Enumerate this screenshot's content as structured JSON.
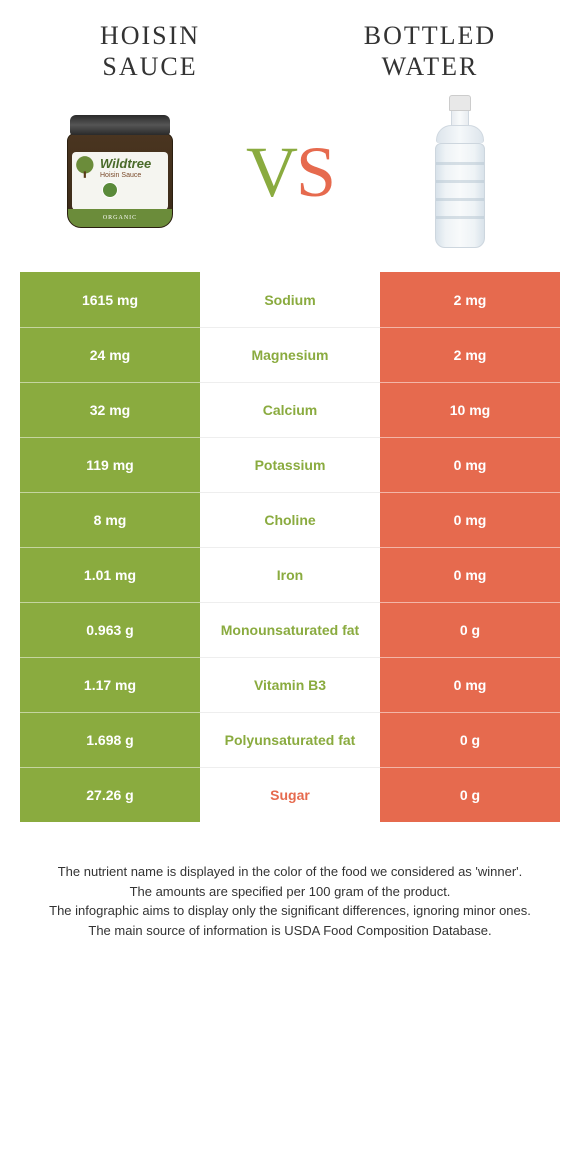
{
  "left_product": {
    "title_line1": "HOISIN",
    "title_line2": "SAUCE"
  },
  "right_product": {
    "title_line1": "BOTTLED",
    "title_line2": "WATER"
  },
  "vs": {
    "v": "V",
    "s": "S"
  },
  "jar": {
    "brand": "Wildtree",
    "product": "Hoisin Sauce",
    "footer": "ORGANIC"
  },
  "colors": {
    "green": "#8aab3f",
    "orange": "#e66a4e",
    "green_text": "#8aab3f",
    "orange_text": "#e66a4e"
  },
  "rows": [
    {
      "left": "1615 mg",
      "label": "Sodium",
      "right": "2 mg",
      "winner": "left"
    },
    {
      "left": "24 mg",
      "label": "Magnesium",
      "right": "2 mg",
      "winner": "left"
    },
    {
      "left": "32 mg",
      "label": "Calcium",
      "right": "10 mg",
      "winner": "left"
    },
    {
      "left": "119 mg",
      "label": "Potassium",
      "right": "0 mg",
      "winner": "left"
    },
    {
      "left": "8 mg",
      "label": "Choline",
      "right": "0 mg",
      "winner": "left"
    },
    {
      "left": "1.01 mg",
      "label": "Iron",
      "right": "0 mg",
      "winner": "left"
    },
    {
      "left": "0.963 g",
      "label": "Monounsaturated fat",
      "right": "0 g",
      "winner": "left"
    },
    {
      "left": "1.17 mg",
      "label": "Vitamin B3",
      "right": "0 mg",
      "winner": "left"
    },
    {
      "left": "1.698 g",
      "label": "Polyunsaturated fat",
      "right": "0 g",
      "winner": "left"
    },
    {
      "left": "27.26 g",
      "label": "Sugar",
      "right": "0 g",
      "winner": "right"
    }
  ],
  "footer": {
    "line1": "The nutrient name is displayed in the color of the food we considered as 'winner'.",
    "line2": "The amounts are specified per 100 gram of the product.",
    "line3": "The infographic aims to display only the significant differences, ignoring minor ones.",
    "line4": "The main source of information is USDA Food Composition Database."
  }
}
